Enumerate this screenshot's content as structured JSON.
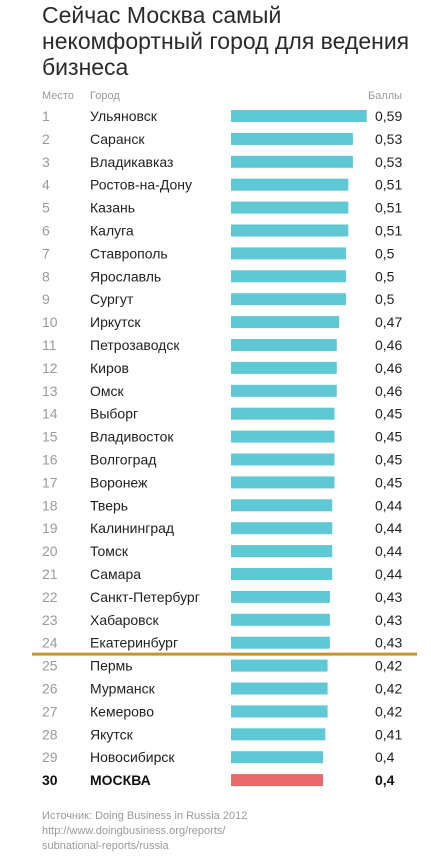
{
  "title": "Сейчас Москва самый некомфортный город для ведения бизнеса",
  "headers": {
    "rank": "Место",
    "city": "Город",
    "score": "Баллы"
  },
  "source_lines": [
    "Источник: Doing Business in Russia 2012",
    "http://www.doingbusiness.org/reports/",
    "subnational-reports/russia"
  ],
  "colors": {
    "bar": "#5ec8d4",
    "highlight_bar": "#e8696a",
    "cutoff_line": "#c9952b"
  },
  "chart_data": {
    "type": "bar",
    "orientation": "horizontal",
    "title": "Сейчас Москва самый некомфортный город для ведения бизнеса",
    "xlabel": "Баллы",
    "ylabel": "Город",
    "highlight": "МОСКВА",
    "cutoff_after_rank": 24,
    "ranks": [
      "1",
      "2",
      "3",
      "4",
      "5",
      "6",
      "7",
      "8",
      "9",
      "10",
      "11",
      "12",
      "13",
      "14",
      "15",
      "16",
      "17",
      "18",
      "19",
      "20",
      "21",
      "22",
      "23",
      "24",
      "25",
      "26",
      "27",
      "28",
      "29",
      "30"
    ],
    "categories": [
      "Ульяновск",
      "Саранск",
      "Владикавказ",
      "Ростов-на-Дону",
      "Казань",
      "Калуга",
      "Ставрополь",
      "Ярославль",
      "Сургут",
      "Иркутск",
      "Петрозаводск",
      "Киров",
      "Омск",
      "Выборг",
      "Владивосток",
      "Волгоград",
      "Воронеж",
      "Тверь",
      "Калининград",
      "Томск",
      "Самара",
      "Санкт-Петербург",
      "Хабаровск",
      "Екатеринбург",
      "Пермь",
      "Мурманск",
      "Кемерово",
      "Якутск",
      "Новосибирск",
      "МОСКВА"
    ],
    "values": [
      0.59,
      0.53,
      0.53,
      0.51,
      0.51,
      0.51,
      0.5,
      0.5,
      0.5,
      0.47,
      0.46,
      0.46,
      0.46,
      0.45,
      0.45,
      0.45,
      0.45,
      0.44,
      0.44,
      0.44,
      0.44,
      0.43,
      0.43,
      0.43,
      0.42,
      0.42,
      0.42,
      0.41,
      0.4,
      0.4
    ],
    "value_labels": [
      "0,59",
      "0,53",
      "0,53",
      "0,51",
      "0,51",
      "0,51",
      "0,5",
      "0,5",
      "0,5",
      "0,47",
      "0,46",
      "0,46",
      "0,46",
      "0,45",
      "0,45",
      "0,45",
      "0,45",
      "0,44",
      "0,44",
      "0,44",
      "0,44",
      "0,43",
      "0,43",
      "0,43",
      "0,42",
      "0,42",
      "0,42",
      "0,41",
      "0,4",
      "0,4"
    ],
    "grid": false,
    "legend": "none"
  }
}
